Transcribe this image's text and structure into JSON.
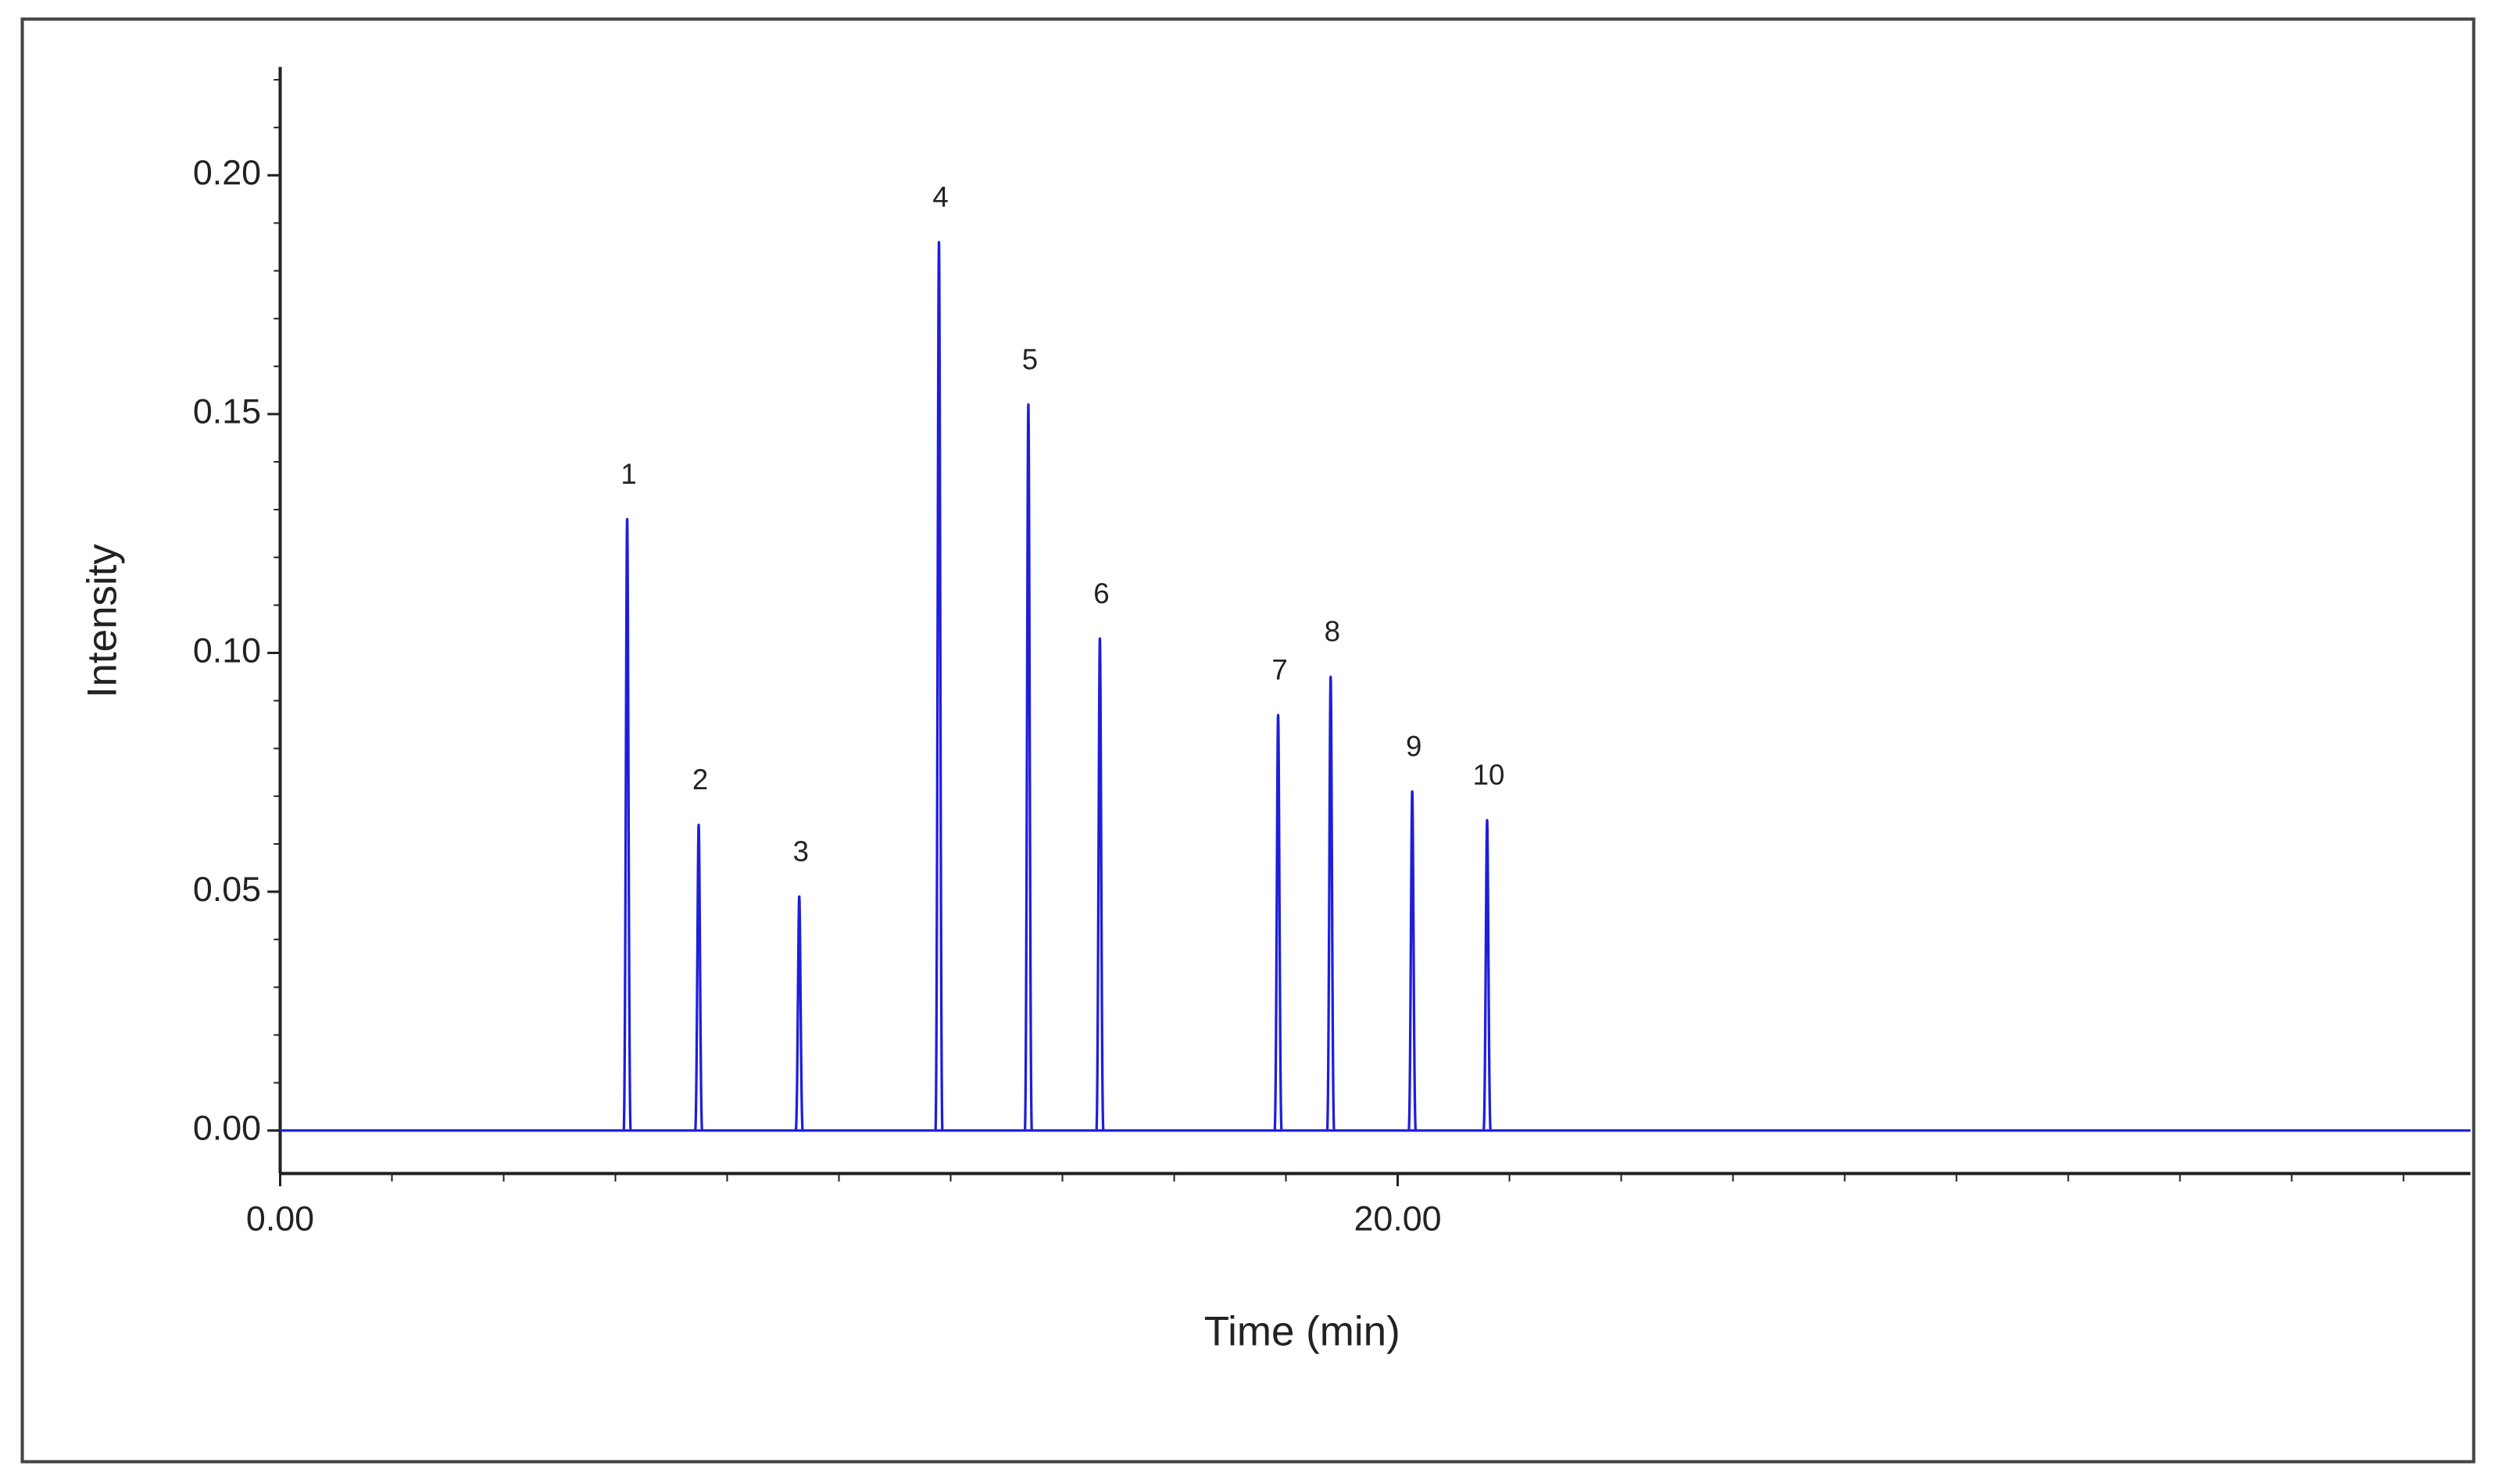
{
  "chart_data": {
    "type": "line",
    "xlabel": "Time (min)",
    "ylabel": "Intensity",
    "x": [
      6.21,
      7.49,
      9.29,
      11.79,
      13.39,
      14.67,
      17.86,
      18.8,
      20.26,
      21.6
    ],
    "values": [
      0.128,
      0.064,
      0.049,
      0.186,
      0.152,
      0.103,
      0.087,
      0.095,
      0.071,
      0.065
    ],
    "point_labels": [
      "1",
      "2",
      "3",
      "4",
      "5",
      "6",
      "7",
      "8",
      "9",
      "10"
    ],
    "color": "#1e1edc",
    "xlim": [
      0,
      39.2
    ],
    "ylim": [
      -0.009,
      0.2227
    ],
    "xticks": [
      {
        "value": 0,
        "label": "0.00"
      },
      {
        "value": 20,
        "label": "20.00"
      }
    ],
    "xminorticks": [
      2,
      4,
      6,
      8,
      10,
      12,
      14,
      16,
      18,
      22,
      24,
      26,
      28,
      30,
      32,
      34,
      36,
      38
    ],
    "yticks": [
      {
        "value": 0,
        "label": "0.00"
      },
      {
        "value": 0.05,
        "label": "0.05"
      },
      {
        "value": 0.1,
        "label": "0.10"
      },
      {
        "value": 0.15,
        "label": "0.15"
      },
      {
        "value": 0.2,
        "label": "0.20"
      }
    ],
    "yminorticks": [
      0.01,
      0.02,
      0.03,
      0.04,
      0.06,
      0.07,
      0.08,
      0.09,
      0.11,
      0.12,
      0.13,
      0.14,
      0.16,
      0.17,
      0.18,
      0.19,
      0.21,
      0.22
    ]
  }
}
